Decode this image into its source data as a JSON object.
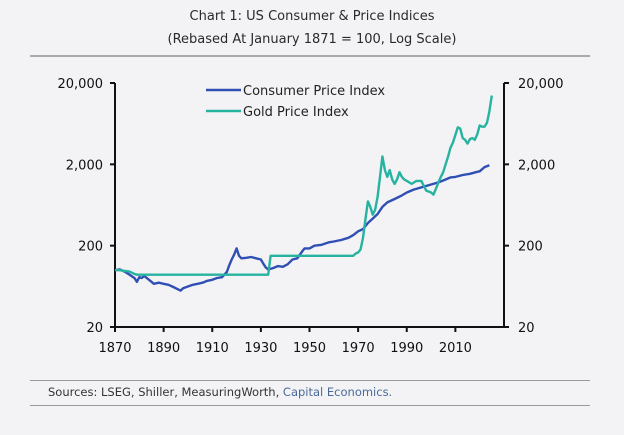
{
  "header": {
    "title": "Chart 1: US Consumer & Price Indices",
    "subtitle": "(Rebased At January 1871 = 100, Log Scale)"
  },
  "footer": {
    "sources_prefix": "Sources: LSEG, Shiller, MeasuringWorth, ",
    "sources_highlight": "Capital Economics."
  },
  "colors": {
    "cpi": "#2f4fb5",
    "gold": "#26b3a0",
    "axis": "#111111"
  },
  "chart_data": {
    "type": "line",
    "title": "Chart 1: US Consumer & Price Indices",
    "subtitle": "(Rebased At January 1871 = 100, Log Scale)",
    "xlabel": "",
    "ylabel": "",
    "yscale": "log",
    "xlim": [
      1870,
      2030
    ],
    "ylim": [
      20,
      20000
    ],
    "x_ticks": [
      "1870",
      "1890",
      "1910",
      "1930",
      "1950",
      "1970",
      "1990",
      "2010"
    ],
    "y_ticks_left": [
      "20,000",
      "2,000",
      "200",
      "20"
    ],
    "y_ticks_right": [
      "20,000",
      "2,000",
      "200",
      "20"
    ],
    "legend_position": "top-center",
    "grid": false,
    "series": [
      {
        "name": "Consumer Price Index",
        "color": "#2f4fb5",
        "points": [
          [
            1870,
            100
          ],
          [
            1872,
            102
          ],
          [
            1874,
            96
          ],
          [
            1876,
            88
          ],
          [
            1878,
            80
          ],
          [
            1879,
            72
          ],
          [
            1880,
            82
          ],
          [
            1881,
            80
          ],
          [
            1882,
            85
          ],
          [
            1884,
            76
          ],
          [
            1886,
            68
          ],
          [
            1888,
            70
          ],
          [
            1890,
            68
          ],
          [
            1892,
            66
          ],
          [
            1894,
            62
          ],
          [
            1896,
            58
          ],
          [
            1897,
            56
          ],
          [
            1898,
            60
          ],
          [
            1900,
            63
          ],
          [
            1902,
            66
          ],
          [
            1904,
            68
          ],
          [
            1906,
            70
          ],
          [
            1908,
            74
          ],
          [
            1910,
            76
          ],
          [
            1912,
            80
          ],
          [
            1914,
            82
          ],
          [
            1916,
            95
          ],
          [
            1917,
            115
          ],
          [
            1918,
            135
          ],
          [
            1919,
            155
          ],
          [
            1920,
            185
          ],
          [
            1921,
            150
          ],
          [
            1922,
            140
          ],
          [
            1924,
            142
          ],
          [
            1926,
            145
          ],
          [
            1928,
            140
          ],
          [
            1930,
            135
          ],
          [
            1931,
            120
          ],
          [
            1932,
            108
          ],
          [
            1933,
            102
          ],
          [
            1935,
            106
          ],
          [
            1937,
            112
          ],
          [
            1939,
            110
          ],
          [
            1941,
            118
          ],
          [
            1943,
            135
          ],
          [
            1945,
            140
          ],
          [
            1947,
            170
          ],
          [
            1948,
            185
          ],
          [
            1950,
            185
          ],
          [
            1952,
            200
          ],
          [
            1955,
            205
          ],
          [
            1958,
            220
          ],
          [
            1960,
            225
          ],
          [
            1963,
            235
          ],
          [
            1966,
            250
          ],
          [
            1968,
            270
          ],
          [
            1970,
            300
          ],
          [
            1972,
            320
          ],
          [
            1974,
            380
          ],
          [
            1976,
            430
          ],
          [
            1978,
            490
          ],
          [
            1980,
            600
          ],
          [
            1982,
            680
          ],
          [
            1985,
            750
          ],
          [
            1988,
            830
          ],
          [
            1990,
            900
          ],
          [
            1993,
            980
          ],
          [
            1996,
            1040
          ],
          [
            2000,
            1130
          ],
          [
            2003,
            1200
          ],
          [
            2006,
            1300
          ],
          [
            2008,
            1380
          ],
          [
            2010,
            1400
          ],
          [
            2013,
            1480
          ],
          [
            2016,
            1530
          ],
          [
            2019,
            1620
          ],
          [
            2020,
            1640
          ],
          [
            2022,
            1850
          ],
          [
            2024,
            1950
          ]
        ]
      },
      {
        "name": "Gold Price Index",
        "color": "#26b3a0",
        "points": [
          [
            1870,
            100
          ],
          [
            1872,
            100
          ],
          [
            1874,
            98
          ],
          [
            1876,
            96
          ],
          [
            1878,
            90
          ],
          [
            1879,
            88
          ],
          [
            1880,
            88
          ],
          [
            1900,
            88
          ],
          [
            1920,
            88
          ],
          [
            1933,
            88
          ],
          [
            1934,
            150
          ],
          [
            1950,
            150
          ],
          [
            1960,
            150
          ],
          [
            1968,
            150
          ],
          [
            1969,
            160
          ],
          [
            1970,
            165
          ],
          [
            1971,
            180
          ],
          [
            1972,
            250
          ],
          [
            1973,
            420
          ],
          [
            1974,
            700
          ],
          [
            1975,
            600
          ],
          [
            1976,
            480
          ],
          [
            1977,
            550
          ],
          [
            1978,
            800
          ],
          [
            1979,
            1400
          ],
          [
            1980,
            2500
          ],
          [
            1981,
            1700
          ],
          [
            1982,
            1400
          ],
          [
            1983,
            1700
          ],
          [
            1984,
            1300
          ],
          [
            1985,
            1150
          ],
          [
            1986,
            1300
          ],
          [
            1987,
            1600
          ],
          [
            1988,
            1400
          ],
          [
            1989,
            1300
          ],
          [
            1990,
            1250
          ],
          [
            1992,
            1150
          ],
          [
            1994,
            1250
          ],
          [
            1996,
            1250
          ],
          [
            1998,
            950
          ],
          [
            2000,
            900
          ],
          [
            2001,
            850
          ],
          [
            2002,
            1000
          ],
          [
            2003,
            1200
          ],
          [
            2004,
            1400
          ],
          [
            2005,
            1600
          ],
          [
            2006,
            2000
          ],
          [
            2007,
            2500
          ],
          [
            2008,
            3200
          ],
          [
            2009,
            3700
          ],
          [
            2010,
            4600
          ],
          [
            2011,
            5700
          ],
          [
            2012,
            5500
          ],
          [
            2013,
            4200
          ],
          [
            2014,
            4000
          ],
          [
            2015,
            3600
          ],
          [
            2016,
            4100
          ],
          [
            2017,
            4200
          ],
          [
            2018,
            4000
          ],
          [
            2019,
            4700
          ],
          [
            2020,
            6000
          ],
          [
            2021,
            5800
          ],
          [
            2022,
            5800
          ],
          [
            2023,
            6500
          ],
          [
            2024,
            9000
          ],
          [
            2025,
            14000
          ]
        ]
      }
    ]
  }
}
